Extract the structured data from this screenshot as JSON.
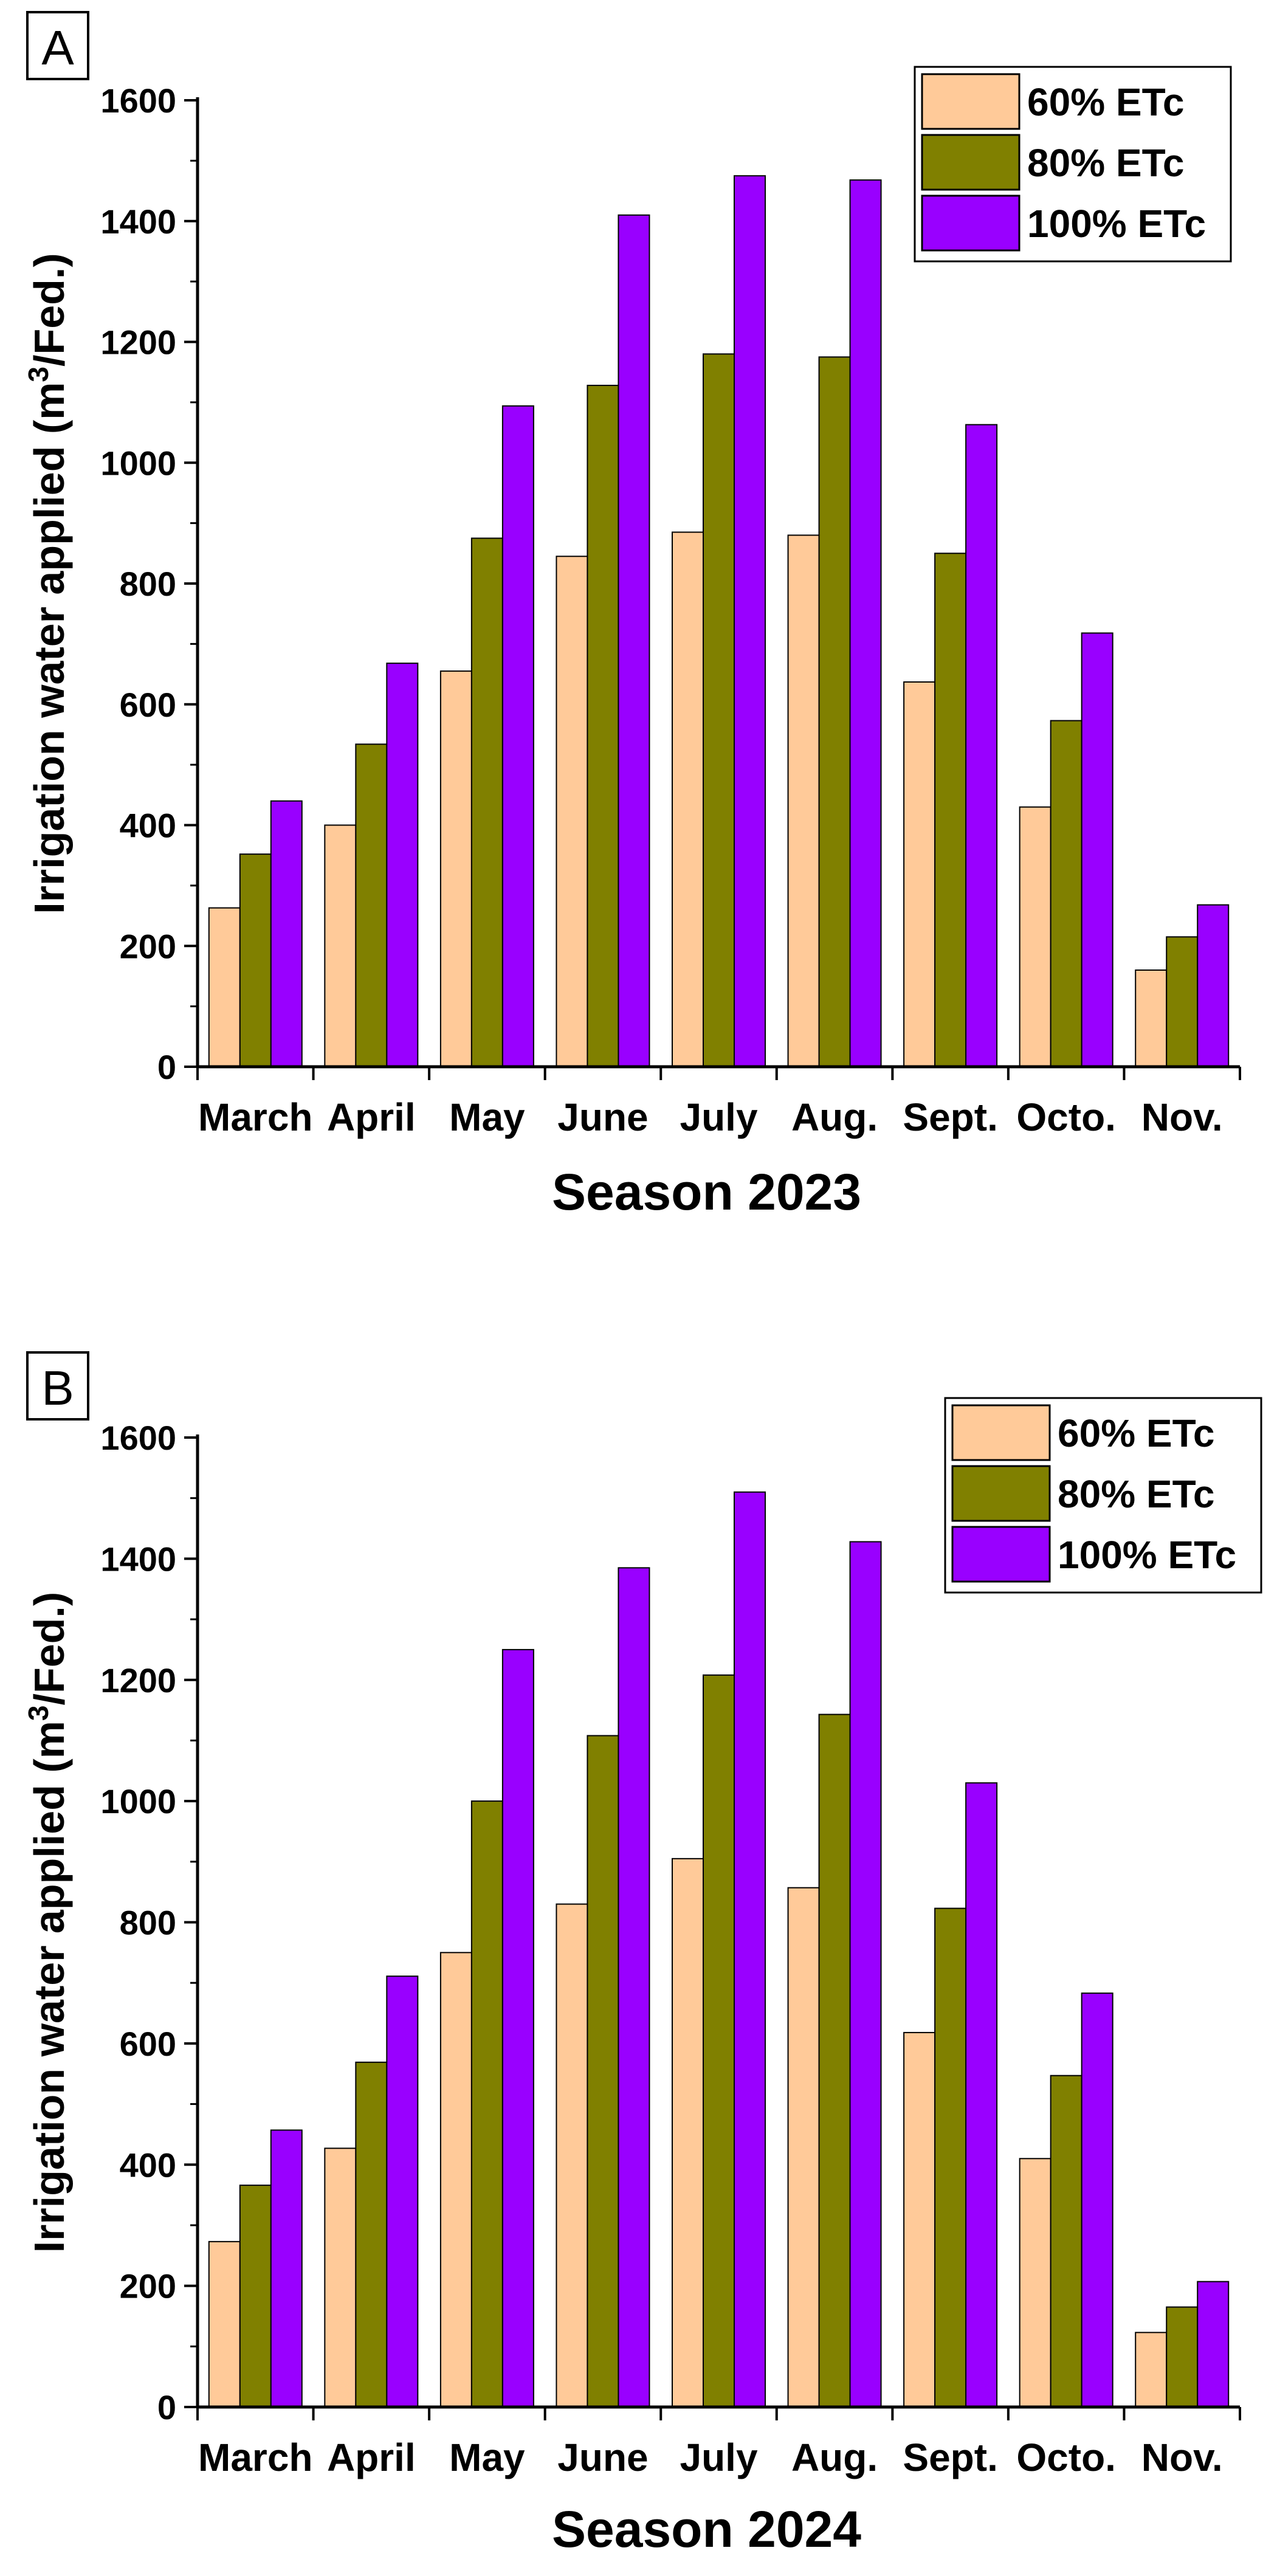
{
  "colors": {
    "series_60": "#FFCA99",
    "series_80": "#808000",
    "series_100": "#9900FF",
    "axis": "#000000"
  },
  "chart_data": [
    {
      "type": "bar",
      "panel_label": "A",
      "title": "Season 2023",
      "xlabel": "Season 2023",
      "ylabel": "Irrigation water applied (m³/Fed.)",
      "ylabel_parts": {
        "before": "Irrigation water applied (m",
        "sup": "3",
        "after": "/Fed.)"
      },
      "ylim": [
        0,
        1600
      ],
      "yticks": [
        0,
        200,
        400,
        600,
        800,
        1000,
        1200,
        1400,
        1600
      ],
      "legend_position": "top-right",
      "categories": [
        "March",
        "April",
        "May",
        "June",
        "July",
        "Aug.",
        "Sept.",
        "Octo.",
        "Nov."
      ],
      "series": [
        {
          "name": "60% ETc",
          "values": [
            263,
            400,
            655,
            845,
            885,
            880,
            637,
            430,
            160
          ]
        },
        {
          "name": "80% ETc",
          "values": [
            352,
            534,
            875,
            1128,
            1180,
            1175,
            850,
            573,
            215
          ]
        },
        {
          "name": "100% ETc",
          "values": [
            440,
            668,
            1094,
            1410,
            1475,
            1468,
            1063,
            718,
            268
          ]
        }
      ]
    },
    {
      "type": "bar",
      "panel_label": "B",
      "title": "Season 2024",
      "xlabel": "Season 2024",
      "ylabel": "Irrigation water applied (m³/Fed.)",
      "ylabel_parts": {
        "before": "Irrigation water applied (m",
        "sup": "3",
        "after": "/Fed.)"
      },
      "ylim": [
        0,
        1600
      ],
      "yticks": [
        0,
        200,
        400,
        600,
        800,
        1000,
        1200,
        1400,
        1600
      ],
      "legend_position": "top-right",
      "categories": [
        "March",
        "April",
        "May",
        "June",
        "July",
        "Aug.",
        "Sept.",
        "Octo.",
        "Nov."
      ],
      "series": [
        {
          "name": "60% ETc",
          "values": [
            273,
            427,
            750,
            830,
            905,
            857,
            618,
            410,
            123
          ]
        },
        {
          "name": "80% ETc",
          "values": [
            366,
            569,
            1000,
            1108,
            1208,
            1143,
            823,
            547,
            165
          ]
        },
        {
          "name": "100% ETc",
          "values": [
            457,
            711,
            1250,
            1385,
            1510,
            1428,
            1030,
            683,
            207
          ]
        }
      ]
    }
  ]
}
